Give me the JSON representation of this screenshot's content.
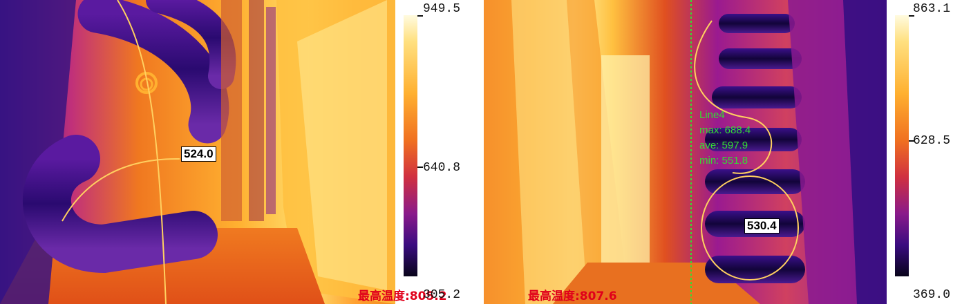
{
  "left": {
    "scale": {
      "max": "949.5",
      "mid": "640.8",
      "min": "305.2"
    },
    "spot_label": "524.0",
    "max_temp_label": "最高温度:805.2"
  },
  "right": {
    "scale": {
      "max": "863.1",
      "mid": "628.5",
      "min": "369.0"
    },
    "spot_label": "530.4",
    "max_temp_label": "最高温度:807.6",
    "line": {
      "name": "Line4",
      "max": "max: 688.4",
      "ave": "ave: 597.9",
      "min": "min: 551.8"
    }
  },
  "colors": {
    "hot": "#fff7c0",
    "warm": "#ffa020",
    "mid": "#e04020",
    "cool": "#8a1a8a",
    "cold": "#20107a"
  }
}
